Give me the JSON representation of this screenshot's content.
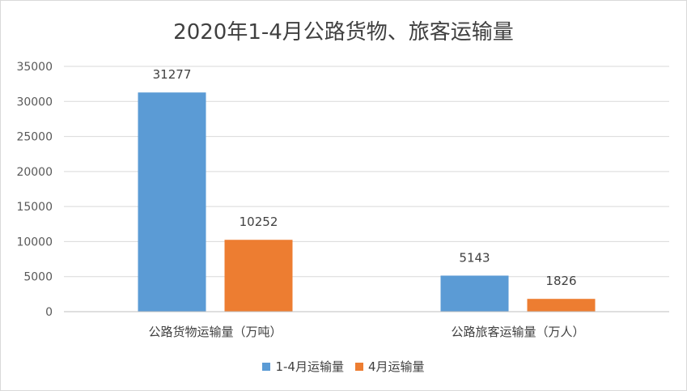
{
  "chart_data": {
    "type": "bar",
    "title": "2020年1-4月公路货物、旅客运输量",
    "categories": [
      "公路货物运输量（万吨）",
      "公路旅客运输量（万人）"
    ],
    "series": [
      {
        "name": "1-4月运输量",
        "values": [
          31277,
          5143
        ],
        "color": "#5b9bd5"
      },
      {
        "name": "4月运输量",
        "values": [
          10252,
          1826
        ],
        "color": "#ed7d31"
      }
    ],
    "ylim": [
      0,
      35000
    ],
    "yticks": [
      "0",
      "5000",
      "10000",
      "15000",
      "20000",
      "25000",
      "30000",
      "35000"
    ],
    "grid": true,
    "legend_position": "bottom"
  }
}
